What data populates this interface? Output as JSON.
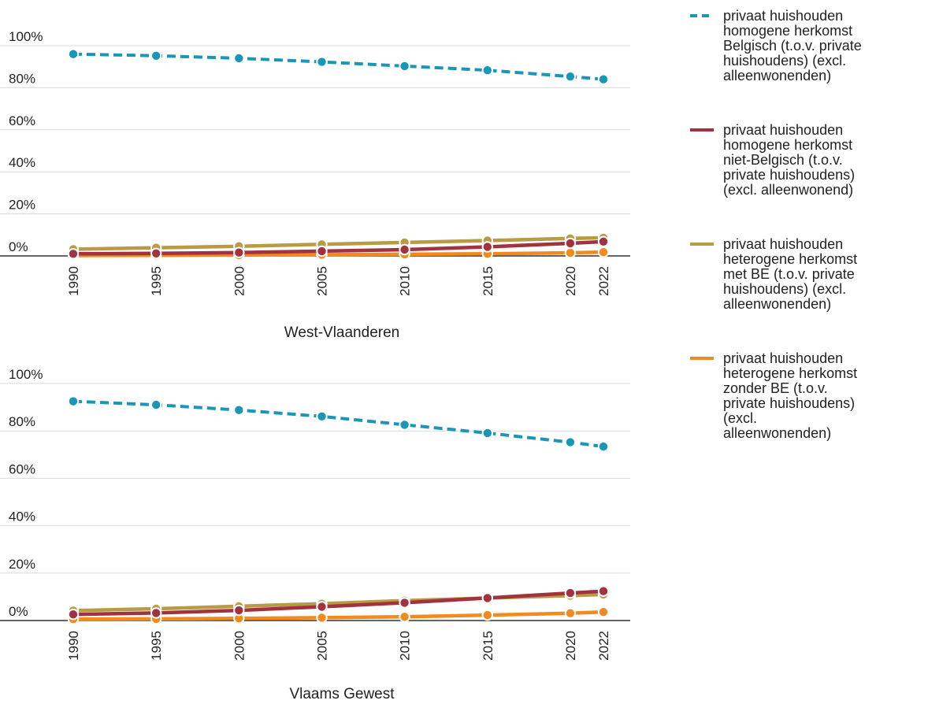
{
  "chart_data": [
    {
      "type": "line",
      "title": "West-Vlaanderen",
      "x": [
        1990,
        1995,
        2000,
        2005,
        2010,
        2015,
        2020,
        2022
      ],
      "x_tick_labels": [
        "1990",
        "1995",
        "2000",
        "2005",
        "2010",
        "2015",
        "2020",
        "2022"
      ],
      "y_ticks": [
        0,
        20,
        40,
        60,
        80,
        100
      ],
      "y_tick_labels": [
        "0%",
        "20%",
        "40%",
        "60%",
        "80%",
        "100%"
      ],
      "ylim": [
        0,
        100
      ],
      "grid": true,
      "series": [
        {
          "name": "privaat huishouden homogene herkomst Belgisch (t.o.v. private huishoudens) (excl. alleenwonenden)",
          "color": "#1a96b8",
          "dash": true,
          "values": [
            96.0,
            95.2,
            94.0,
            92.3,
            90.3,
            88.3,
            85.3,
            84.0
          ]
        },
        {
          "name": "privaat huishouden homogene herkomst niet-Belgisch (t.o.v. private huishoudens) (excl. alleenwonend)",
          "color": "#a23240",
          "dash": false,
          "values": [
            1.0,
            1.2,
            1.6,
            2.3,
            3.0,
            4.3,
            6.0,
            6.8
          ]
        },
        {
          "name": "privaat huishouden heterogene herkomst met BE (t.o.v. private huishoudens) (excl. alleenwonenden)",
          "color": "#b89b45",
          "dash": false,
          "values": [
            3.2,
            3.9,
            4.6,
            5.5,
            6.4,
            7.3,
            8.3,
            8.6
          ]
        },
        {
          "name": "privaat huishouden heterogene herkomst zonder BE (t.o.v. private huishoudens) (excl. alleenwonenden)",
          "color": "#f28a1e",
          "dash": false,
          "values": [
            0.2,
            0.3,
            0.4,
            0.6,
            0.8,
            1.0,
            1.5,
            1.8
          ]
        }
      ]
    },
    {
      "type": "line",
      "title": "Vlaams Gewest",
      "x": [
        1990,
        1995,
        2000,
        2005,
        2010,
        2015,
        2020,
        2022
      ],
      "x_tick_labels": [
        "1990",
        "1995",
        "2000",
        "2005",
        "2010",
        "2015",
        "2020",
        "2022"
      ],
      "y_ticks": [
        0,
        20,
        40,
        60,
        80,
        100
      ],
      "y_tick_labels": [
        "0%",
        "20%",
        "40%",
        "60%",
        "80%",
        "100%"
      ],
      "ylim": [
        0,
        100
      ],
      "grid": true,
      "series": [
        {
          "name": "privaat huishouden homogene herkomst Belgisch (t.o.v. private huishoudens) (excl. alleenwonenden)",
          "color": "#1a96b8",
          "dash": true,
          "values": [
            92.5,
            91.0,
            88.8,
            86.1,
            82.6,
            79.1,
            75.2,
            73.4
          ]
        },
        {
          "name": "privaat huishouden homogene herkomst niet-Belgisch (t.o.v. private huishoudens) (excl. alleenwonend)",
          "color": "#a23240",
          "dash": false,
          "values": [
            2.6,
            3.2,
            4.3,
            5.8,
            7.5,
            9.5,
            11.6,
            12.4
          ]
        },
        {
          "name": "privaat huishouden heterogene herkomst met BE (t.o.v. private huishoudens) (excl. alleenwonenden)",
          "color": "#b89b45",
          "dash": false,
          "values": [
            4.2,
            5.0,
            6.0,
            7.1,
            8.4,
            9.5,
            10.5,
            11.0
          ]
        },
        {
          "name": "privaat huishouden heterogene herkomst zonder BE (t.o.v. private huishoudens) (excl. alleenwonenden)",
          "color": "#f28a1e",
          "dash": false,
          "values": [
            0.6,
            0.7,
            0.9,
            1.2,
            1.6,
            2.3,
            3.1,
            3.6
          ]
        }
      ]
    }
  ],
  "legend": {
    "position": "right",
    "items": [
      {
        "lines": [
          "privaat huishouden",
          "homogene herkomst",
          "Belgisch (t.o.v. private",
          "huishoudens) (excl.",
          "alleenwonenden)"
        ],
        "color": "#1a96b8",
        "dash": true
      },
      {
        "lines": [
          "privaat huishouden",
          "homogene herkomst",
          "niet-Belgisch (t.o.v.",
          "private huishoudens)",
          "(excl. alleenwonend)"
        ],
        "color": "#a23240",
        "dash": false
      },
      {
        "lines": [
          "privaat huishouden",
          "heterogene herkomst",
          "met BE (t.o.v. private",
          "huishoudens) (excl.",
          "alleenwonenden)"
        ],
        "color": "#b89b45",
        "dash": false
      },
      {
        "lines": [
          "privaat huishouden",
          "heterogene herkomst",
          "zonder BE (t.o.v.",
          "private huishoudens)",
          "(excl.",
          "alleenwonenden)"
        ],
        "color": "#f28a1e",
        "dash": false
      }
    ]
  }
}
